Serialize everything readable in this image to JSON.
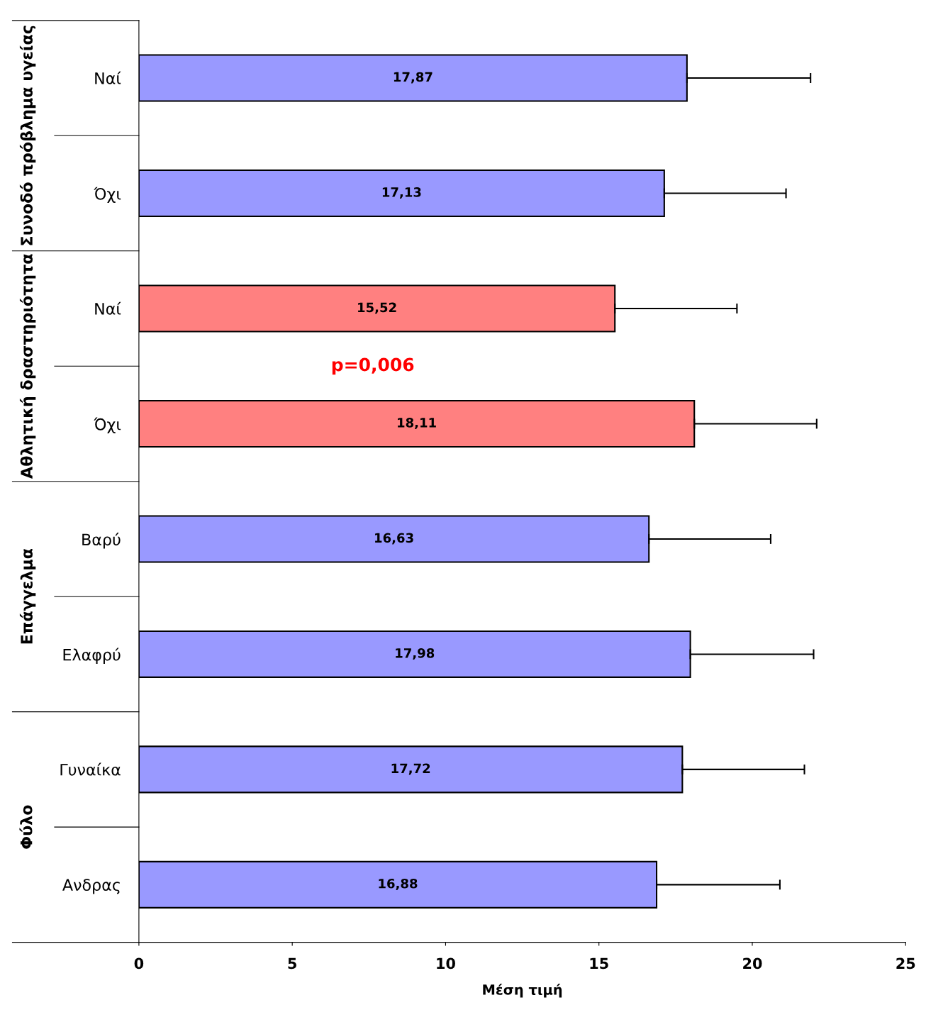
{
  "chart_data": {
    "type": "bar",
    "orientation": "horizontal",
    "xlabel": "Μέση τιμή",
    "categories": [
      "Ναί",
      "Όχι",
      "Ναί",
      "Όχι",
      "Βαρύ",
      "Ελαφρύ",
      "Γυναίκα",
      "Ανδρας"
    ],
    "values": [
      17.87,
      17.13,
      15.52,
      18.11,
      16.63,
      17.98,
      17.72,
      16.88
    ],
    "errors": [
      [
        17.87,
        21.9
      ],
      [
        17.13,
        21.1
      ],
      [
        15.52,
        19.5
      ],
      [
        18.11,
        22.1
      ],
      [
        16.63,
        20.6
      ],
      [
        17.98,
        22.0
      ],
      [
        17.72,
        21.7
      ],
      [
        16.88,
        20.9
      ]
    ],
    "value_labels": [
      "17,87",
      "17,13",
      "15,52",
      "18,11",
      "16,63",
      "17,98",
      "17,72",
      "16,88"
    ],
    "colors": [
      "#9999ff",
      "#9999ff",
      "#ff8080",
      "#ff8080",
      "#9999ff",
      "#9999ff",
      "#9999ff",
      "#9999ff"
    ],
    "xlim": [
      0,
      25
    ],
    "xticks": [
      0,
      5,
      10,
      15,
      20,
      25
    ],
    "grid": false,
    "legend": false,
    "annotations": [
      "Συνοδό πρόβλημα υγείας",
      "Αθλητική δραστηριότητα",
      "Επάγγελμα",
      "Φύλο",
      "p=0,006"
    ]
  }
}
